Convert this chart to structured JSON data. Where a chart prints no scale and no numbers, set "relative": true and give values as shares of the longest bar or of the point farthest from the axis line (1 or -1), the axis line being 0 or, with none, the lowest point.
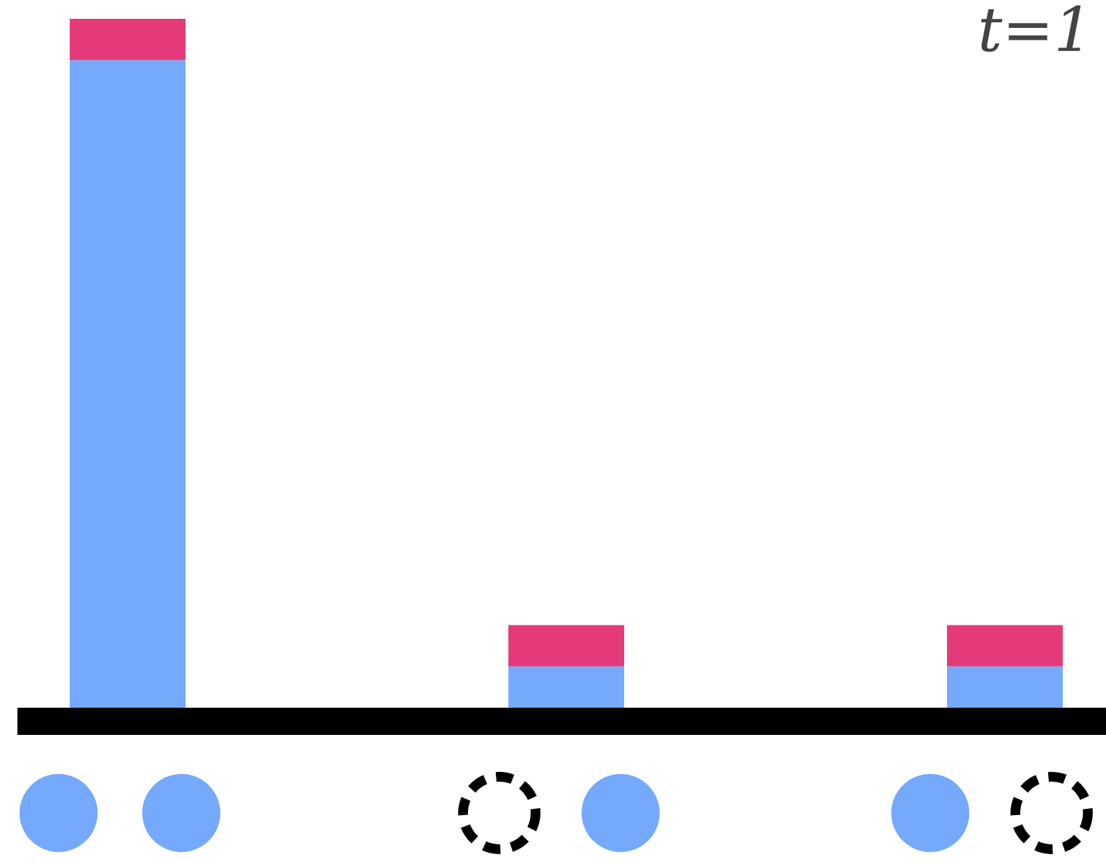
{
  "chart_data": {
    "type": "bar",
    "stacked": true,
    "relative": true,
    "categories": [
      null,
      null,
      null
    ],
    "series": [
      {
        "color": "#74a9fc",
        "values": [
          0.94,
          0.06,
          0.06
        ]
      },
      {
        "color": "#e43a7a",
        "values": [
          0.06,
          0.06,
          0.06
        ]
      }
    ],
    "annotations": [
      "t=1"
    ],
    "grid": false
  }
}
